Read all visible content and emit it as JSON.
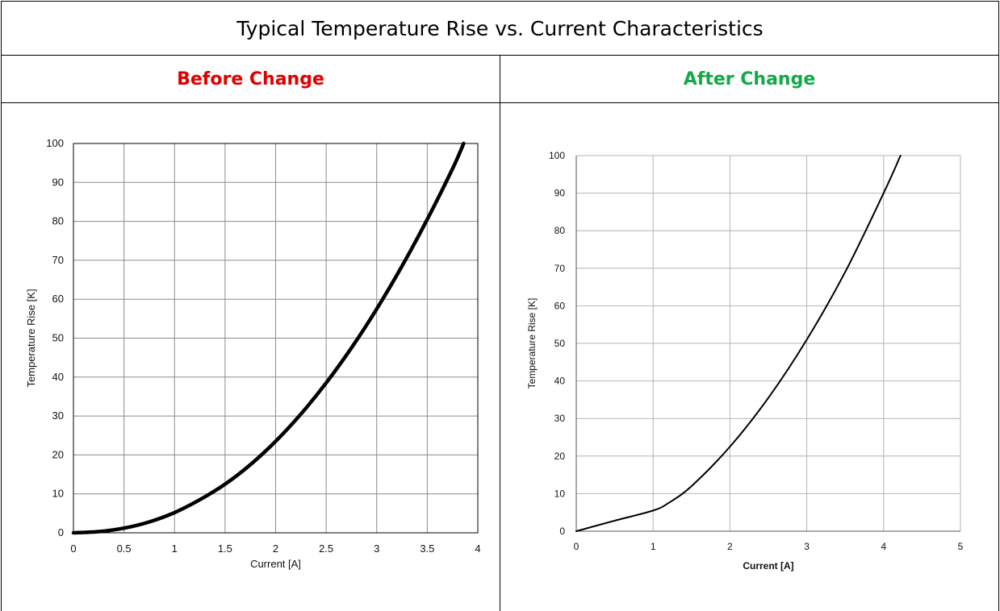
{
  "table": {
    "title": "Typical Temperature Rise vs. Current Characteristics",
    "left_header": "Before Change",
    "right_header": "After Change",
    "left_header_color": "#e00000",
    "right_header_color": "#14a84a"
  },
  "chart_data": [
    {
      "type": "line",
      "title": "",
      "xlabel": "Current [A]",
      "ylabel": "Temperature Rise [K]",
      "xlim": [
        0,
        4
      ],
      "ylim": [
        0,
        100
      ],
      "xticks": [
        "0",
        "0.5",
        "1",
        "1.5",
        "2",
        "2.5",
        "3",
        "3.5",
        "4"
      ],
      "yticks": [
        "0",
        "10",
        "20",
        "30",
        "40",
        "50",
        "60",
        "70",
        "80",
        "90",
        "100"
      ],
      "grid": true,
      "series": [
        {
          "x": [
            0,
            0.25,
            0.5,
            0.75,
            1.0,
            1.25,
            1.5,
            1.75,
            2.0,
            2.25,
            2.5,
            2.75,
            3.0,
            3.25,
            3.5,
            3.75,
            3.86
          ],
          "y": [
            0,
            0.3,
            1.2,
            2.8,
            5.2,
            8.5,
            12.5,
            17.5,
            23.5,
            30.5,
            38.5,
            47.5,
            57.5,
            68.5,
            80.5,
            93.5,
            100
          ]
        }
      ]
    },
    {
      "type": "line",
      "title": "",
      "xlabel": "Current [A]",
      "ylabel": "Temperature Rise [K]",
      "xlim": [
        0,
        5
      ],
      "ylim": [
        0,
        100
      ],
      "xticks": [
        "0",
        "1",
        "2",
        "3",
        "4",
        "5"
      ],
      "yticks": [
        "0",
        "10",
        "20",
        "30",
        "40",
        "50",
        "60",
        "70",
        "80",
        "90",
        "100"
      ],
      "grid": true,
      "series": [
        {
          "x": [
            0,
            0.5,
            1.0,
            1.2,
            1.5,
            2.0,
            2.5,
            3.0,
            3.5,
            4.0,
            4.22
          ],
          "y": [
            0,
            2.8,
            5.5,
            7.5,
            12,
            22.5,
            35.5,
            51,
            69,
            90,
            100
          ]
        }
      ]
    }
  ]
}
